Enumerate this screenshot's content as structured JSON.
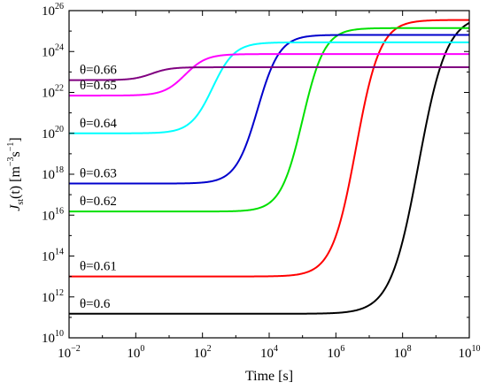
{
  "chart_data": {
    "type": "line",
    "xlabel": "Time [s]",
    "ylabel": {
      "main": "J",
      "sub": "st",
      "arg": "(t) [m",
      "exp1": "−3",
      "mid": "s",
      "exp2": "−1",
      "end": "]"
    },
    "x_scale": "log",
    "y_scale": "log",
    "xlim": [
      0.01,
      10000000000
    ],
    "ylim": [
      10000000000,
      100000000000000000000000000
    ],
    "x_ticks": [
      {
        "base": "10",
        "exp": "−2",
        "value": 0.01
      },
      {
        "base": "10",
        "exp": "0",
        "value": 1
      },
      {
        "base": "10",
        "exp": "2",
        "value": 100
      },
      {
        "base": "10",
        "exp": "4",
        "value": 10000
      },
      {
        "base": "10",
        "exp": "6",
        "value": 1000000
      },
      {
        "base": "10",
        "exp": "8",
        "value": 100000000
      },
      {
        "base": "10",
        "exp": "10",
        "value": 10000000000
      }
    ],
    "y_ticks": [
      {
        "base": "10",
        "exp": "10",
        "value": 10000000000.0
      },
      {
        "base": "10",
        "exp": "12",
        "value": 1000000000000.0
      },
      {
        "base": "10",
        "exp": "14",
        "value": 100000000000000.0
      },
      {
        "base": "10",
        "exp": "16",
        "value": 1e+16
      },
      {
        "base": "10",
        "exp": "18",
        "value": 1e+18
      },
      {
        "base": "10",
        "exp": "20",
        "value": 1e+20
      },
      {
        "base": "10",
        "exp": "22",
        "value": 1e+22
      },
      {
        "base": "10",
        "exp": "24",
        "value": 1e+24
      },
      {
        "base": "10",
        "exp": "26",
        "value": 1e+26
      }
    ],
    "series": [
      {
        "name": "θ=0.6",
        "color": "#000000",
        "initial": 150000000000.0,
        "final": 6e+25,
        "t_mid": 300000000,
        "width_decades": 0.42
      },
      {
        "name": "θ=0.61",
        "color": "#ff0000",
        "initial": 10000000000000.0,
        "final": 3.5e+25,
        "t_mid": 4000000,
        "width_decades": 0.36
      },
      {
        "name": "θ=0.62",
        "color": "#00e000",
        "initial": 1.5e+16,
        "final": 1.4e+25,
        "t_mid": 100000,
        "width_decades": 0.33
      },
      {
        "name": "θ=0.63",
        "color": "#0000cc",
        "initial": 3.5e+17,
        "final": 6.5e+24,
        "t_mid": 4500,
        "width_decades": 0.33
      },
      {
        "name": "θ=0.64",
        "color": "#00ffff",
        "initial": 1e+20,
        "final": 2.8e+24,
        "t_mid": 200,
        "width_decades": 0.33
      },
      {
        "name": "θ=0.65",
        "color": "#ff00ff",
        "initial": 7e+21,
        "final": 7.5e+23,
        "t_mid": 30,
        "width_decades": 0.32
      },
      {
        "name": "θ=0.66",
        "color": "#800080",
        "initial": 4e+22,
        "final": 1.7e+23,
        "t_mid": 3,
        "width_decades": 0.28
      }
    ]
  }
}
